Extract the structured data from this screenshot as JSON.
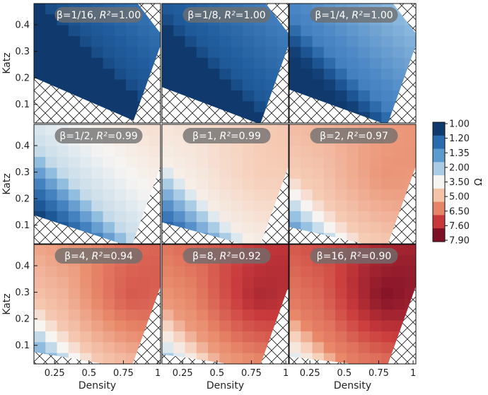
{
  "chart_data": {
    "type": "heatmap",
    "layout": "3x3 facet grid",
    "xlabel": "Density",
    "ylabel": "Katz",
    "x_ticks": [
      "0.25",
      "0.5",
      "0.75",
      "1"
    ],
    "x_tick_values": [
      0.25,
      0.5,
      0.75,
      1.0
    ],
    "y_ticks": [
      "0.1",
      "0.2",
      "0.3",
      "0.4"
    ],
    "y_tick_values": [
      0.1,
      0.2,
      0.3,
      0.4
    ],
    "xlim": [
      0.1,
      1.02
    ],
    "ylim": [
      0.03,
      0.48
    ],
    "colorbar": {
      "label": "Ω",
      "ticks": [
        "1.00",
        "1.20",
        "1.35",
        "2.00",
        "3.50",
        "5.00",
        "6.50",
        "7.60",
        "7.90"
      ],
      "colors": [
        "#103a6e",
        "#2a6aaf",
        "#5b9bcd",
        "#a9cbe4",
        "#f6f5f2",
        "#f4c4a8",
        "#e58466",
        "#c7373b",
        "#7d1025"
      ]
    },
    "hatch": "cross-hatched regions mark no data",
    "panels": [
      {
        "beta": "1/16",
        "r2": "1.00",
        "title_prefix": "β=1/16, ",
        "r2_label": "R²",
        "r2_text": "=1.00",
        "dominant_omega": "1.00-2.00"
      },
      {
        "beta": "1/8",
        "r2": "1.00",
        "title_prefix": "β=1/8, ",
        "r2_label": "R²",
        "r2_text": "=1.00",
        "dominant_omega": "1.20-2.00"
      },
      {
        "beta": "1/4",
        "r2": "1.00",
        "title_prefix": "β=1/4, ",
        "r2_label": "R²",
        "r2_text": "=1.00",
        "dominant_omega": "1.35-3.50"
      },
      {
        "beta": "1/2",
        "r2": "0.99",
        "title_prefix": "β=1/2, ",
        "r2_label": "R²",
        "r2_text": "=0.99",
        "dominant_omega": "2.00-5.00"
      },
      {
        "beta": "1",
        "r2": "0.99",
        "title_prefix": "β=1, ",
        "r2_label": "R²",
        "r2_text": "=0.99",
        "dominant_omega": "3.50-6.50"
      },
      {
        "beta": "2",
        "r2": "0.97",
        "title_prefix": "β=2, ",
        "r2_label": "R²",
        "r2_text": "=0.97",
        "dominant_omega": "5.00-6.50"
      },
      {
        "beta": "4",
        "r2": "0.94",
        "title_prefix": "β=4, ",
        "r2_label": "R²",
        "r2_text": "=0.94",
        "dominant_omega": "5.00-7.60"
      },
      {
        "beta": "8",
        "r2": "0.92",
        "title_prefix": "β=8, ",
        "r2_label": "R²",
        "r2_text": "=0.92",
        "dominant_omega": "6.50-7.90"
      },
      {
        "beta": "16",
        "r2": "0.90",
        "title_prefix": "β=16, ",
        "r2_label": "R²",
        "r2_text": "=0.90",
        "dominant_omega": "7.60-7.90"
      }
    ]
  }
}
